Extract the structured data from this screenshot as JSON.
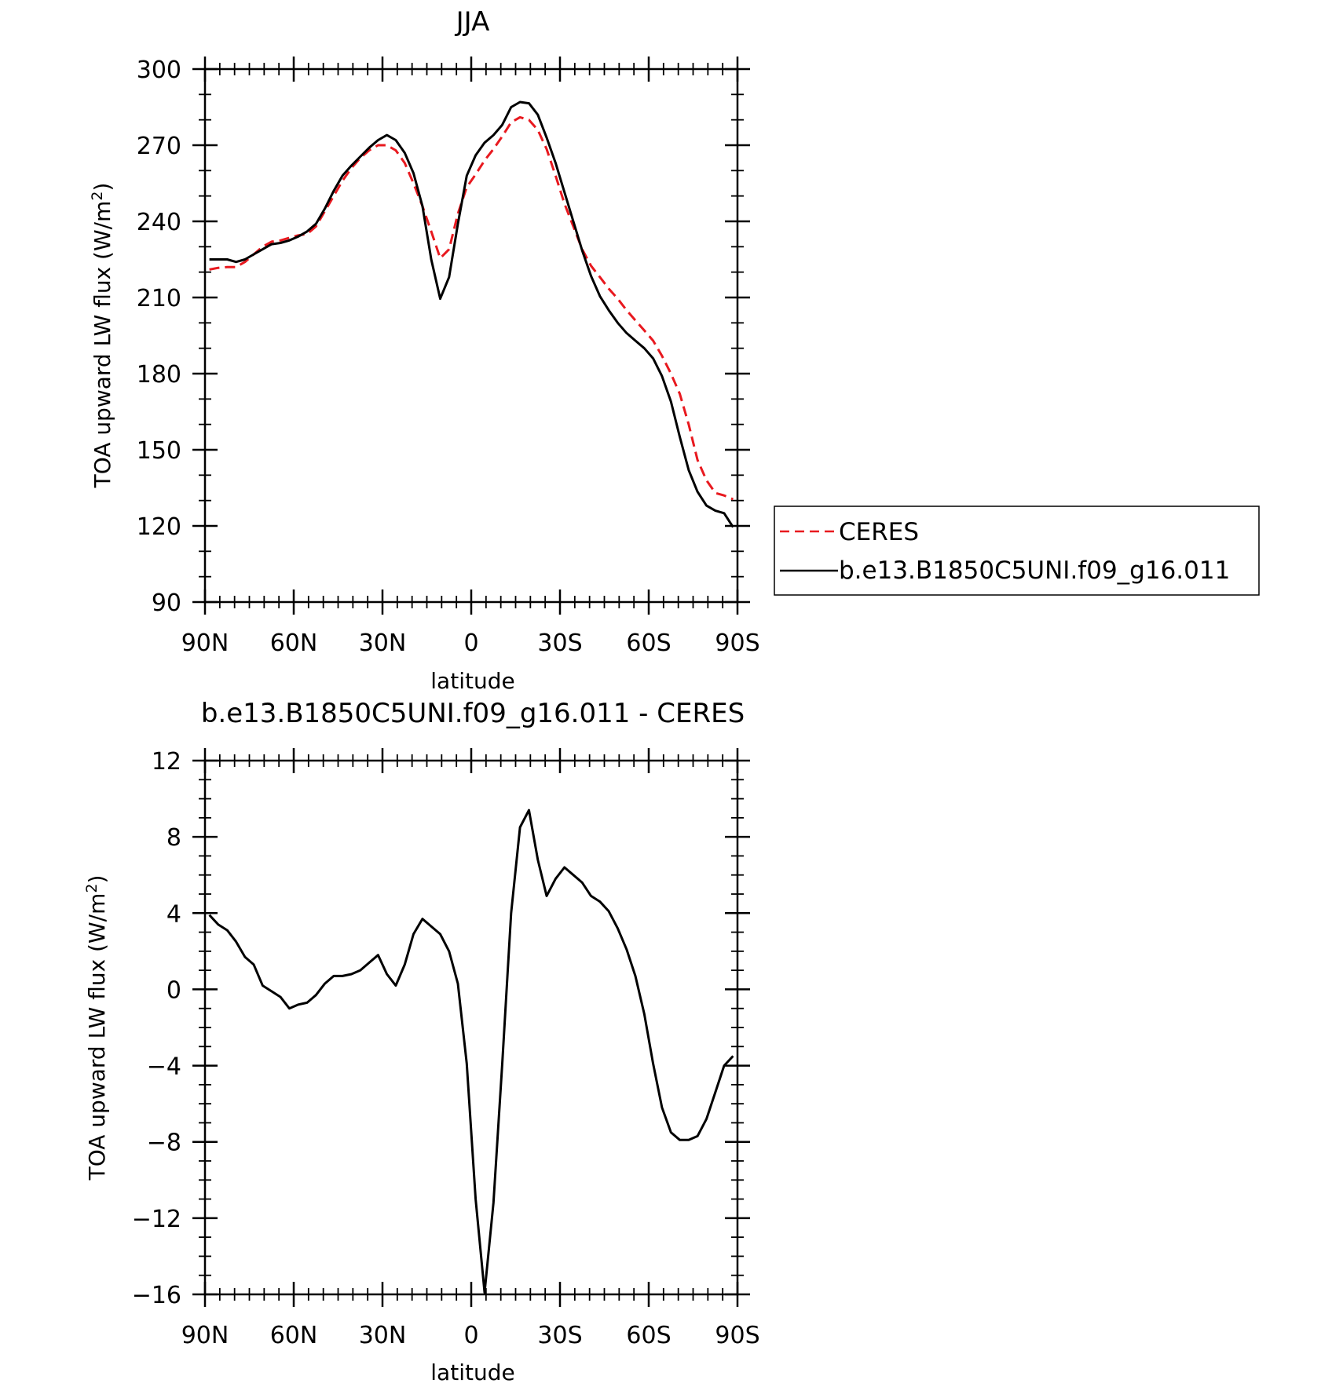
{
  "chart_data": [
    {
      "type": "line",
      "title": "JJA",
      "xlabel": "latitude",
      "ylabel": "TOA upward LW flux (W/m²)",
      "ylabel_main": "TOA upward LW flux (W/m",
      "ylabel_sup": "2",
      "ylabel_close": ")",
      "xlim": [
        -90,
        90
      ],
      "x_direction": "north-to-south",
      "ylim": [
        90,
        300
      ],
      "x_ticks": [
        {
          "value": -90,
          "label": "90N"
        },
        {
          "value": -60,
          "label": "60N"
        },
        {
          "value": -30,
          "label": "30N"
        },
        {
          "value": 0,
          "label": "0"
        },
        {
          "value": 30,
          "label": "30S"
        },
        {
          "value": 60,
          "label": "60S"
        },
        {
          "value": 90,
          "label": "90S"
        }
      ],
      "y_ticks": [
        90,
        120,
        150,
        180,
        210,
        240,
        270,
        300
      ],
      "grid": false,
      "legend": "right, outside plot",
      "x": [
        -88.5,
        -85.5,
        -82.5,
        -79.5,
        -76.5,
        -73.5,
        -70.5,
        -67.5,
        -64.5,
        -61.5,
        -58.5,
        -55.5,
        -52.5,
        -49.5,
        -46.5,
        -43.5,
        -40.5,
        -37.5,
        -34.5,
        -31.5,
        -28.5,
        -25.5,
        -22.5,
        -19.5,
        -16.5,
        -13.5,
        -10.5,
        -7.5,
        -4.5,
        -1.5,
        1.5,
        4.5,
        7.5,
        10.5,
        13.5,
        16.5,
        19.5,
        22.5,
        25.5,
        28.5,
        31.5,
        34.5,
        37.5,
        40.5,
        43.5,
        46.5,
        49.5,
        52.5,
        55.5,
        58.5,
        61.5,
        64.5,
        67.5,
        70.5,
        73.5,
        76.5,
        79.5,
        82.5,
        85.5,
        88.5
      ],
      "series": [
        {
          "name": "CERES",
          "color": "#e8191f",
          "style": "dashed",
          "values": [
            221,
            221.7,
            222,
            222,
            224,
            227,
            230,
            232,
            232.5,
            233.5,
            234.5,
            235,
            238,
            244,
            250,
            256,
            261,
            265,
            268,
            270,
            270,
            268,
            263,
            255,
            246,
            236,
            225.5,
            229,
            243,
            253.5,
            258.5,
            264,
            268.5,
            273.5,
            279,
            281,
            280,
            276,
            268.5,
            258,
            247,
            238,
            229,
            222.5,
            218,
            213.5,
            209.5,
            205,
            201,
            197,
            193,
            187,
            180,
            172,
            160,
            146,
            138,
            133,
            132,
            130.5
          ]
        },
        {
          "name": "b.e13.B1850C5UNI.f09_g16.011",
          "color": "#000000",
          "style": "solid",
          "values": [
            225,
            225,
            225,
            224,
            225,
            227,
            229,
            231,
            231.5,
            232.5,
            234,
            236,
            239,
            245,
            252,
            258,
            262,
            265.5,
            269,
            272,
            274,
            272,
            267,
            259,
            246,
            225,
            209.5,
            218,
            239,
            258,
            266,
            271,
            274,
            278,
            285,
            287,
            286.5,
            282,
            273,
            263,
            251.5,
            240,
            228.5,
            218.5,
            210.5,
            205,
            200,
            196,
            193,
            190,
            186,
            179,
            169,
            155,
            142,
            133.5,
            128,
            126,
            125,
            119.5
          ]
        }
      ]
    },
    {
      "type": "line",
      "title": "b.e13.B1850C5UNI.f09_g16.011 - CERES",
      "xlabel": "latitude",
      "ylabel": "TOA upward LW flux (W/m²)",
      "ylabel_main": "TOA upward LW flux (W/m",
      "ylabel_sup": "2",
      "ylabel_close": ")",
      "xlim": [
        -90,
        90
      ],
      "x_direction": "north-to-south",
      "ylim": [
        -16,
        12
      ],
      "x_ticks": [
        {
          "value": -90,
          "label": "90N"
        },
        {
          "value": -60,
          "label": "60N"
        },
        {
          "value": -30,
          "label": "30N"
        },
        {
          "value": 0,
          "label": "0"
        },
        {
          "value": 30,
          "label": "30S"
        },
        {
          "value": 60,
          "label": "60S"
        },
        {
          "value": 90,
          "label": "90S"
        }
      ],
      "y_ticks": [
        {
          "value": -16,
          "label": "−16"
        },
        {
          "value": -12,
          "label": "−12"
        },
        {
          "value": -8,
          "label": "−8"
        },
        {
          "value": -4,
          "label": "−4"
        },
        {
          "value": 0,
          "label": "0"
        },
        {
          "value": 4,
          "label": "4"
        },
        {
          "value": 8,
          "label": "8"
        },
        {
          "value": 12,
          "label": "12"
        }
      ],
      "grid": false,
      "x": [
        -88.5,
        -85.5,
        -82.5,
        -79.5,
        -76.5,
        -73.5,
        -70.5,
        -67.5,
        -64.5,
        -61.5,
        -58.5,
        -55.5,
        -52.5,
        -49.5,
        -46.5,
        -43.5,
        -40.5,
        -37.5,
        -34.5,
        -31.5,
        -28.5,
        -25.5,
        -22.5,
        -19.5,
        -16.5,
        -13.5,
        -10.5,
        -7.5,
        -4.5,
        -1.5,
        1.5,
        4.5,
        7.5,
        10.5,
        13.5,
        16.5,
        19.5,
        22.5,
        25.5,
        28.5,
        31.5,
        34.5,
        37.5,
        40.5,
        43.5,
        46.5,
        49.5,
        52.5,
        55.5,
        58.5,
        61.5,
        64.5,
        67.5,
        70.5,
        73.5,
        76.5,
        79.5,
        82.5,
        85.5,
        88.5
      ],
      "series": [
        {
          "name": "b.e13.B1850C5UNI.f09_g16.011 - CERES",
          "color": "#000000",
          "style": "solid",
          "values": [
            3.9,
            3.4,
            3.1,
            2.5,
            1.7,
            1.3,
            0.2,
            -0.1,
            -0.4,
            -1.0,
            -0.8,
            -0.7,
            -0.3,
            0.3,
            0.7,
            0.7,
            0.8,
            1.0,
            1.4,
            1.8,
            0.8,
            0.2,
            1.3,
            2.9,
            3.7,
            3.3,
            2.9,
            2.0,
            0.3,
            -3.9,
            -11.0,
            -15.9,
            -11.2,
            -3.9,
            4.0,
            8.5,
            9.4,
            6.8,
            4.9,
            5.8,
            6.4,
            6.0,
            5.6,
            4.9,
            4.6,
            4.1,
            3.2,
            2.1,
            0.7,
            -1.3,
            -3.9,
            -6.2,
            -7.5,
            -7.9,
            -7.9,
            -7.7,
            -6.8,
            -5.4,
            -4.0,
            -3.5
          ]
        }
      ]
    }
  ]
}
